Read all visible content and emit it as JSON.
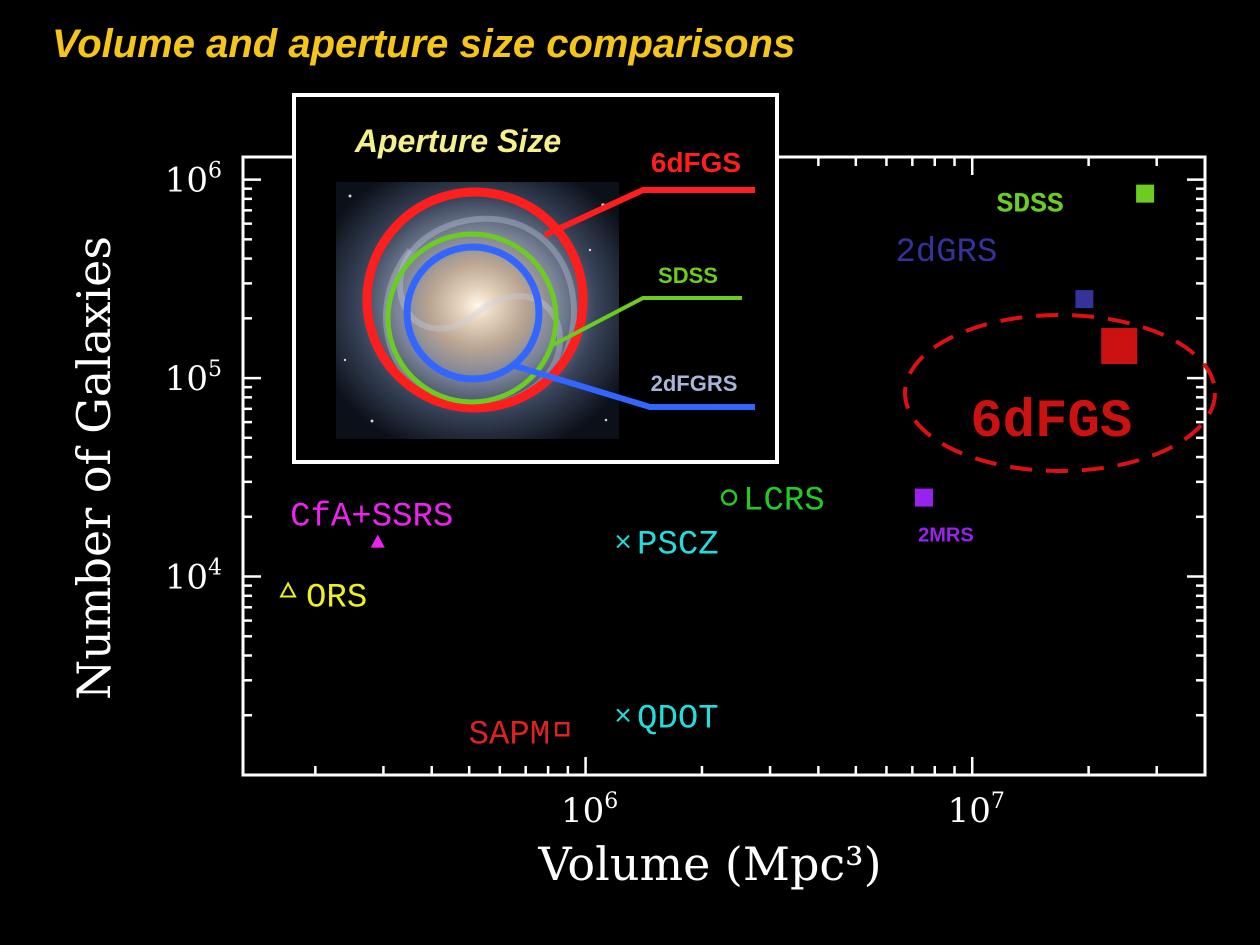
{
  "slide_title": "Volume and aperture size comparisons",
  "colors": {
    "background": "#000000",
    "title": "#f5c518",
    "axes": "#ffffff",
    "sixdfgs": "#dd1111",
    "sdss": "#6ccc22",
    "twodfgrs": "#3366ff"
  },
  "chart_data": {
    "type": "scatter",
    "xlabel": "Volume (Mpc³)",
    "ylabel": "Number of Galaxies",
    "x_scale": "log",
    "y_scale": "log",
    "xlim": [
      130000,
      40000000
    ],
    "ylim": [
      1000,
      1300000
    ],
    "x_ticks": [
      {
        "value": 1000000,
        "base": "10",
        "exp": "6"
      },
      {
        "value": 10000000,
        "base": "10",
        "exp": "7"
      }
    ],
    "y_ticks": [
      {
        "value": 10000,
        "base": "10",
        "exp": "4"
      },
      {
        "value": 100000,
        "base": "10",
        "exp": "5"
      },
      {
        "value": 1000000,
        "base": "10",
        "exp": "6"
      }
    ],
    "grid": false,
    "points": [
      {
        "label": "CfA+SSRS",
        "x": 290000,
        "y": 15000,
        "marker": "triangle-filled",
        "color": "#ee22ee",
        "label_pos": "above-left"
      },
      {
        "label": "ORS",
        "x": 170000,
        "y": 8500,
        "marker": "triangle-open",
        "color": "#eeee22",
        "label_pos": "right"
      },
      {
        "label": "SAPM",
        "x": 870000,
        "y": 1700,
        "marker": "square-open",
        "color": "#dd2222",
        "label_pos": "left"
      },
      {
        "label": "QDOT",
        "x": 1250000,
        "y": 2000,
        "marker": "cross",
        "color": "#22dddd",
        "label_pos": "right"
      },
      {
        "label": "PSCZ",
        "x": 1250000,
        "y": 15000,
        "marker": "cross",
        "color": "#22dddd",
        "label_pos": "right"
      },
      {
        "label": "LCRS",
        "x": 2350000,
        "y": 25000,
        "marker": "circle-open",
        "color": "#22cc22",
        "label_pos": "right"
      },
      {
        "label": "2MRS",
        "x": 7500000,
        "y": 25000,
        "marker": "square-filled",
        "color": "#9922ee",
        "label_pos": "below"
      },
      {
        "label": "2dGRS",
        "x": 19500000,
        "y": 250000,
        "marker": "square-filled",
        "color": "#333399",
        "label_pos": "above-left"
      },
      {
        "label": "SDSS",
        "x": 28000000,
        "y": 850000,
        "marker": "square-filled",
        "color": "#6ccc22",
        "label_pos": "below-left"
      },
      {
        "label": "6dFGS",
        "x": 24000000,
        "y": 145000,
        "marker": "square-filled-large",
        "color": "#cc1111",
        "label_pos": "below-left"
      }
    ]
  },
  "inset": {
    "title": "Aperture Size",
    "apertures": [
      {
        "label": "6dFGS",
        "color": "#ff1e1e"
      },
      {
        "label": "SDSS",
        "color": "#6ccc22"
      },
      {
        "label": "2dFGRS",
        "color": "#3366ff"
      }
    ]
  }
}
